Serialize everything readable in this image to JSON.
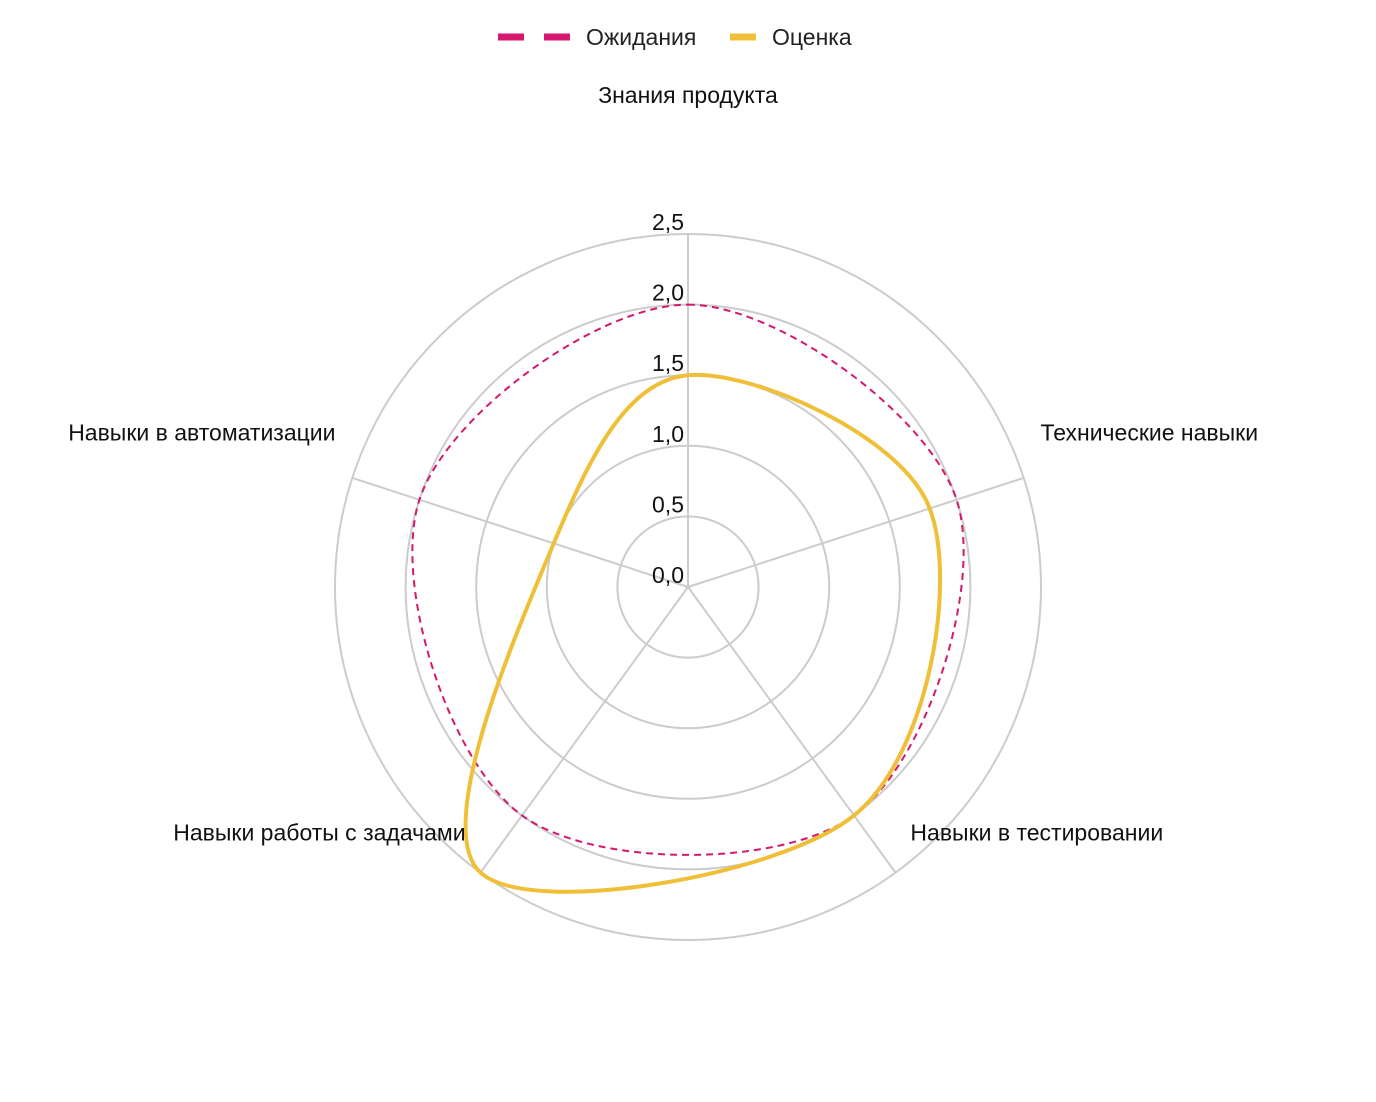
{
  "chart_data": {
    "type": "radar",
    "categories": [
      "Знания продукта",
      "Технические навыки",
      "Навыки в тестировании",
      "Навыки работы с задачами",
      "Навыки в автоматизации"
    ],
    "series": [
      {
        "name": "Ожидания",
        "values": [
          2,
          2,
          2,
          2,
          2
        ],
        "color": "#d6176f",
        "style": "dashed"
      },
      {
        "name": "Оценка",
        "values": [
          1.5,
          1.8,
          2,
          2.5,
          1
        ],
        "color": "#f0bf38",
        "style": "solid"
      }
    ],
    "r_ticks": [
      "0,0",
      "0,5",
      "1,0",
      "1,5",
      "2,0",
      "2,5"
    ],
    "rlim": [
      0,
      2.5
    ],
    "grid": true,
    "legend": "top-center",
    "grid_color": "#cccccc"
  }
}
